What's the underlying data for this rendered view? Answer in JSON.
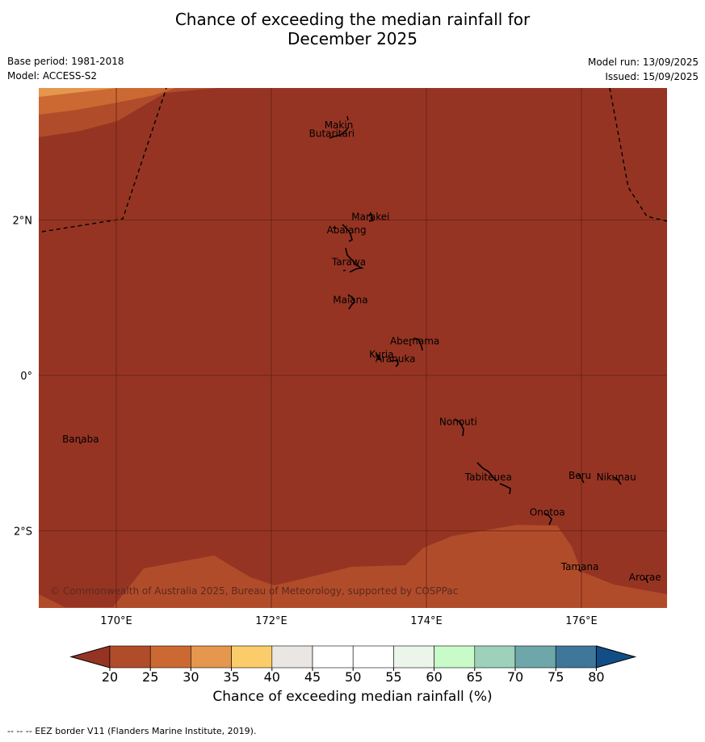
{
  "title_line1": "Chance of exceeding the median rainfall for",
  "title_line2": "December 2025",
  "meta": {
    "base_period": "Base period: 1981-2018",
    "model": "Model: ACCESS-S2",
    "model_run": "Model run: 13/09/2025",
    "issued": "Issued: 15/09/2025"
  },
  "map": {
    "lon_range": [
      169,
      177.1
    ],
    "lat_range": [
      -3.0,
      3.5
    ],
    "x_ticks": [
      "170°E",
      "172°E",
      "174°E",
      "176°E"
    ],
    "x_tick_values": [
      170,
      172,
      174,
      176
    ],
    "y_ticks": [
      "2°N",
      "0°",
      "2°S"
    ],
    "y_tick_values": [
      2,
      0,
      -2
    ],
    "base_category": "<20",
    "copyright": "© Commonwealth of Australia 2025, Bureau of Meteorology, supported by COSPPac",
    "places": [
      {
        "name": "Makin",
        "lon": 172.87,
        "lat": 3.18
      },
      {
        "name": "Butaritari",
        "lon": 172.78,
        "lat": 3.07
      },
      {
        "name": "Marakei",
        "lon": 173.28,
        "lat": 2.0
      },
      {
        "name": "Abaiang",
        "lon": 172.97,
        "lat": 1.83
      },
      {
        "name": "Tarawa",
        "lon": 173.0,
        "lat": 1.42
      },
      {
        "name": "Maiana",
        "lon": 173.02,
        "lat": 0.93
      },
      {
        "name": "Abemama",
        "lon": 173.85,
        "lat": 0.4
      },
      {
        "name": "Kuria",
        "lon": 173.42,
        "lat": 0.23
      },
      {
        "name": "Aranuka",
        "lon": 173.6,
        "lat": 0.17
      },
      {
        "name": "Nonouti",
        "lon": 174.41,
        "lat": -0.64
      },
      {
        "name": "Banaba",
        "lon": 169.54,
        "lat": -0.86
      },
      {
        "name": "Tabiteuea",
        "lon": 174.8,
        "lat": -1.35
      },
      {
        "name": "Beru",
        "lon": 175.98,
        "lat": -1.33
      },
      {
        "name": "Nikunau",
        "lon": 176.45,
        "lat": -1.35
      },
      {
        "name": "Onotoa",
        "lon": 175.56,
        "lat": -1.8
      },
      {
        "name": "Tamana",
        "lon": 175.98,
        "lat": -2.5
      },
      {
        "name": "Arorae",
        "lon": 176.82,
        "lat": -2.64
      }
    ]
  },
  "legend": {
    "title": "Chance of exceeding median rainfall (%)",
    "tick_labels": [
      "20",
      "25",
      "30",
      "35",
      "40",
      "45",
      "50",
      "55",
      "60",
      "65",
      "70",
      "75",
      "80"
    ],
    "colors": [
      "#963423",
      "#b14c2a",
      "#cc6932",
      "#e4974d",
      "#fbcc6a",
      "#e9e6e3",
      "#ffffff",
      "#ffffff",
      "#ebf5ea",
      "#c9fbc8",
      "#9dd1b9",
      "#6ea7a9",
      "#3e7799",
      "#124e86"
    ]
  },
  "footnote": "--  --  -- EEZ border V11 (Flanders Marine Institute, 2019)."
}
